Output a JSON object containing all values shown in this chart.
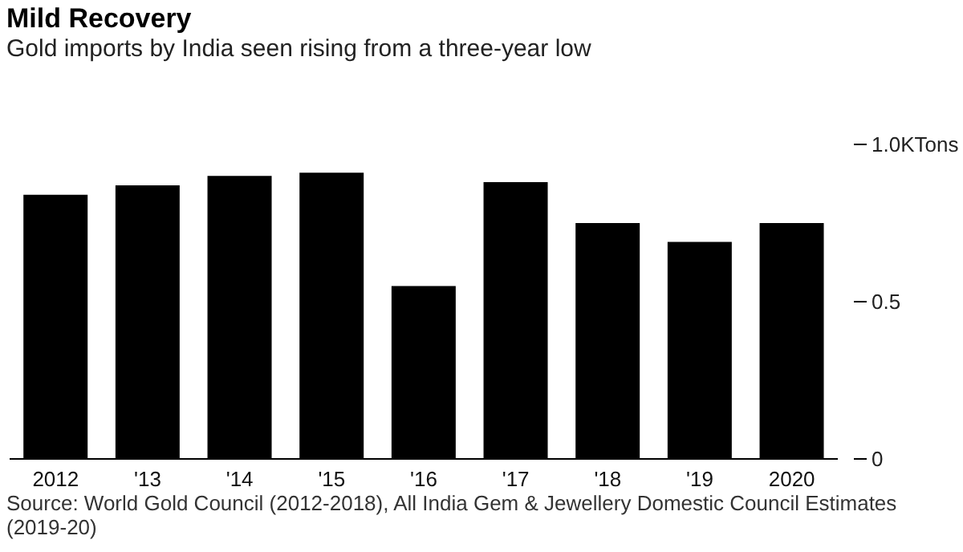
{
  "chart_data": {
    "type": "bar",
    "title": "Mild Recovery",
    "subtitle": "Gold imports by India seen rising from a three-year low",
    "categories": [
      "2012",
      "'13",
      "'14",
      "'15",
      "'16",
      "'17",
      "'18",
      "'19",
      "2020"
    ],
    "values": [
      0.84,
      0.87,
      0.9,
      0.91,
      0.55,
      0.88,
      0.75,
      0.69,
      0.75
    ],
    "color": "#000000",
    "ylim": [
      0,
      1
    ],
    "yticks": [
      0,
      0.5,
      {
        "value": 1,
        "label": "1.0KTons"
      }
    ],
    "grid": false,
    "annotations": [
      "Source: World Gold Council (2012-2018), All India Gem & Jewellery Domestic Council Estimates (2019-20)"
    ]
  }
}
